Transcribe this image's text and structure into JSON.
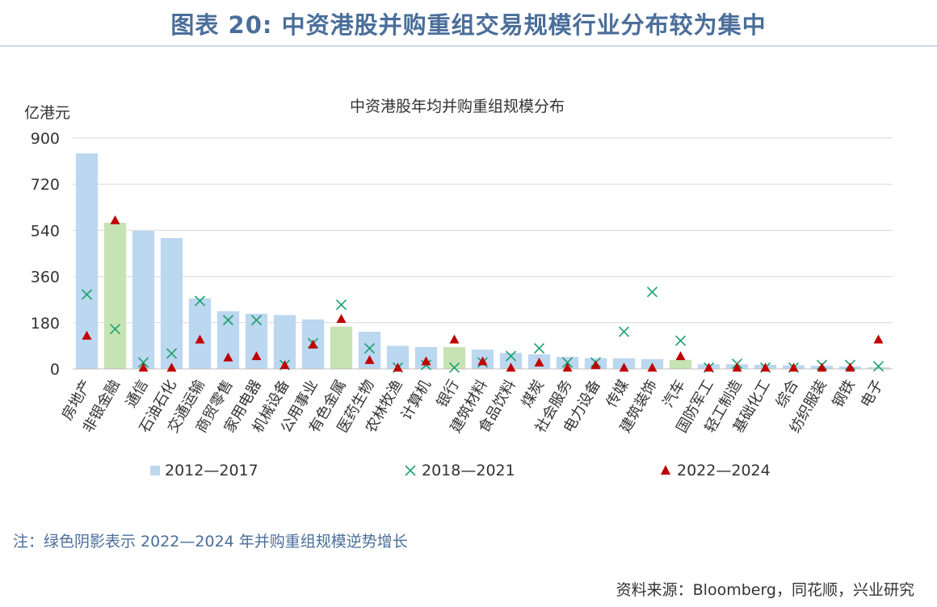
{
  "figure_title": "图表 20: 中资港股并购重组交易规模行业分布较为集中",
  "note": "注：绿色阴影表示 2022—2024 年并购重组规模逆势增长",
  "source": "资料来源：Bloomberg，同花顺，兴业研究",
  "colors": {
    "title": "#4a6e9a",
    "bar_default": "#bcd7f0",
    "bar_highlight": "#c6e3b4",
    "marker_2018": "#1aa06b",
    "marker_2022": "#c00000",
    "grid": "#d9d9d9"
  },
  "chart_data": {
    "type": "bar",
    "title": "中资港股年均并购重组规模分布",
    "ylabel": "亿港元",
    "ylim": [
      0,
      900
    ],
    "yticks": [
      0,
      180,
      360,
      540,
      720,
      900
    ],
    "categories": [
      "房地产",
      "非银金融",
      "通信",
      "石油石化",
      "交通运输",
      "商贸零售",
      "家用电器",
      "机械设备",
      "公用事业",
      "有色金属",
      "医药生物",
      "农林牧渔",
      "计算机",
      "银行",
      "建筑材料",
      "食品饮料",
      "煤炭",
      "社会服务",
      "电力设备",
      "传媒",
      "建筑装饰",
      "汽车",
      "国防军工",
      "轻工制造",
      "基础化工",
      "综合",
      "纺织服装",
      "钢铁",
      "电子"
    ],
    "highlighted": [
      false,
      true,
      false,
      false,
      false,
      false,
      false,
      false,
      false,
      true,
      false,
      false,
      false,
      true,
      false,
      false,
      false,
      false,
      false,
      false,
      false,
      true,
      false,
      false,
      false,
      false,
      false,
      false,
      false
    ],
    "series": [
      {
        "name": "2012—2017",
        "mark": "bar",
        "values": [
          840,
          570,
          538,
          510,
          275,
          225,
          215,
          210,
          193,
          165,
          145,
          90,
          85,
          85,
          75,
          62,
          57,
          47,
          42,
          41,
          38,
          35,
          18,
          18,
          16,
          14,
          12,
          10,
          6
        ]
      },
      {
        "name": "2018—2021",
        "mark": "x",
        "values": [
          290,
          155,
          25,
          60,
          265,
          190,
          190,
          15,
          100,
          250,
          80,
          5,
          15,
          5,
          25,
          50,
          80,
          25,
          25,
          145,
          300,
          110,
          5,
          20,
          5,
          5,
          15,
          15,
          10
        ]
      },
      {
        "name": "2022—2024",
        "mark": "triangle",
        "values": [
          130,
          580,
          5,
          5,
          115,
          45,
          50,
          15,
          95,
          195,
          35,
          5,
          30,
          115,
          30,
          5,
          25,
          5,
          15,
          5,
          5,
          50,
          5,
          5,
          5,
          5,
          5,
          5,
          115
        ]
      }
    ],
    "legend": "bottom",
    "grid": true
  }
}
